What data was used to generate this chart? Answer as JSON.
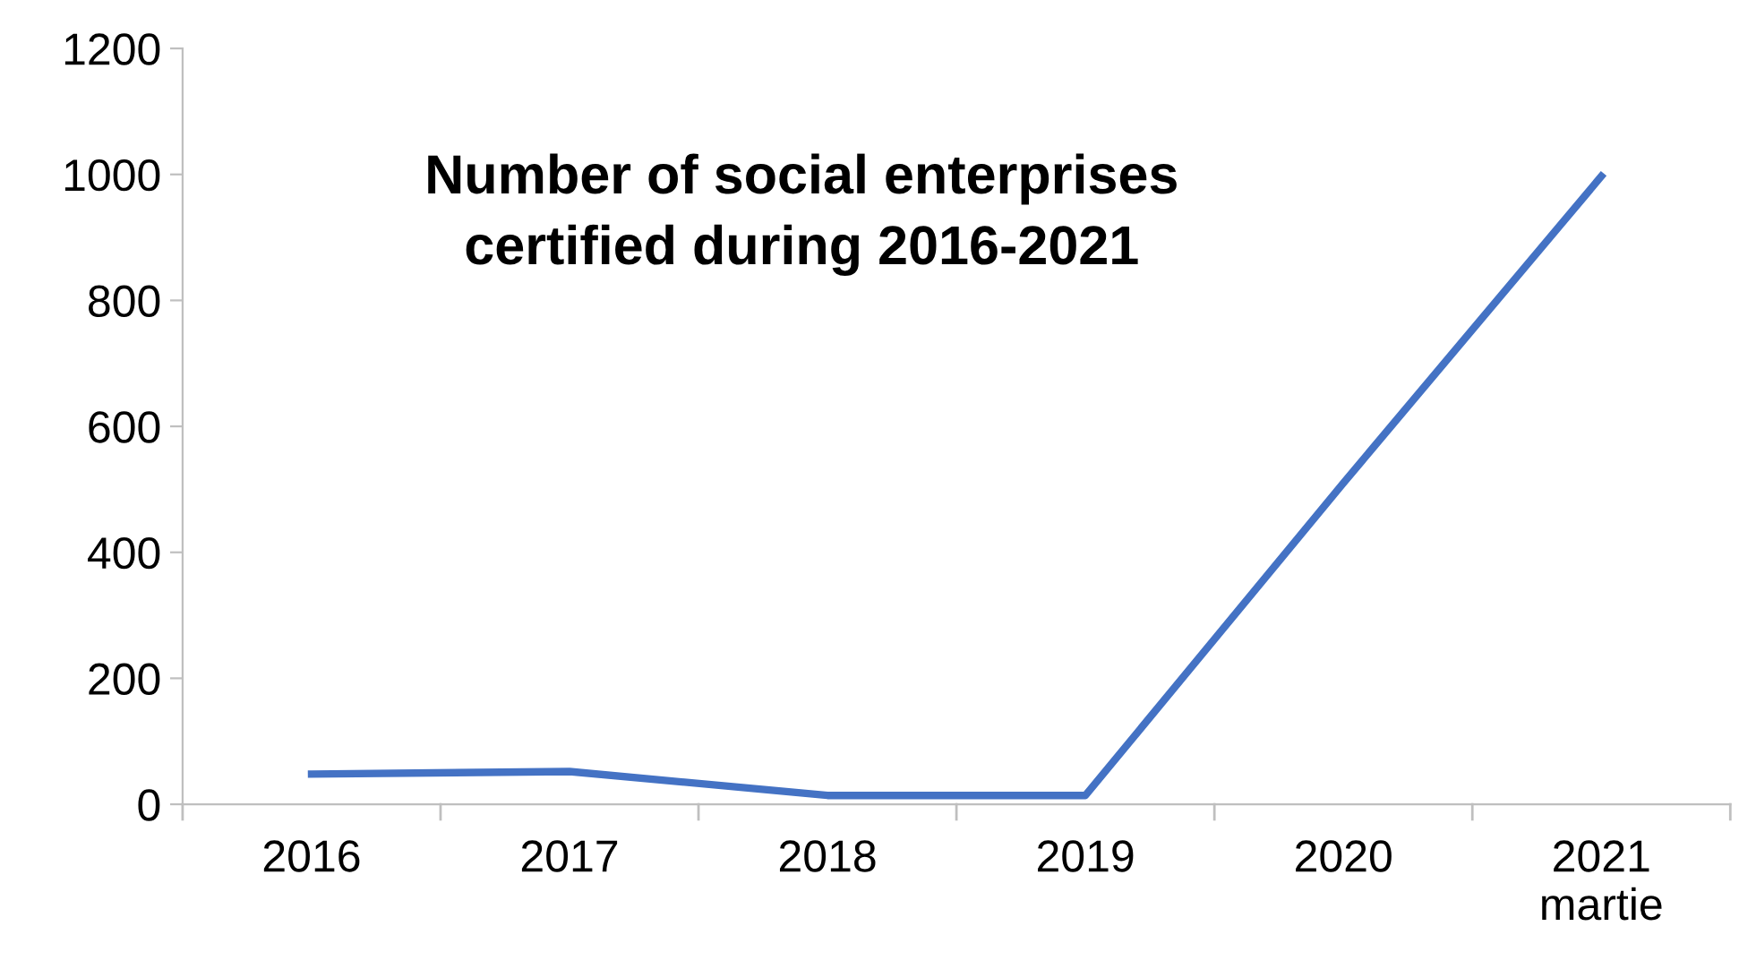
{
  "chart_data": {
    "type": "line",
    "title": "Number of social enterprises\ncertified during 2016-2021",
    "categories": [
      "2016",
      "2017",
      "2018",
      "2019",
      "2020",
      "2021\nmartie"
    ],
    "series": [
      {
        "color": "#4472c4",
        "values": [
          48,
          52,
          14,
          14,
          510,
          997
        ]
      }
    ],
    "ylim": [
      0,
      1200
    ],
    "yticks": [
      0,
      200,
      400,
      600,
      800,
      1000,
      1200
    ],
    "grid": false,
    "legend": false,
    "marker": "none",
    "line_style": "solid"
  }
}
